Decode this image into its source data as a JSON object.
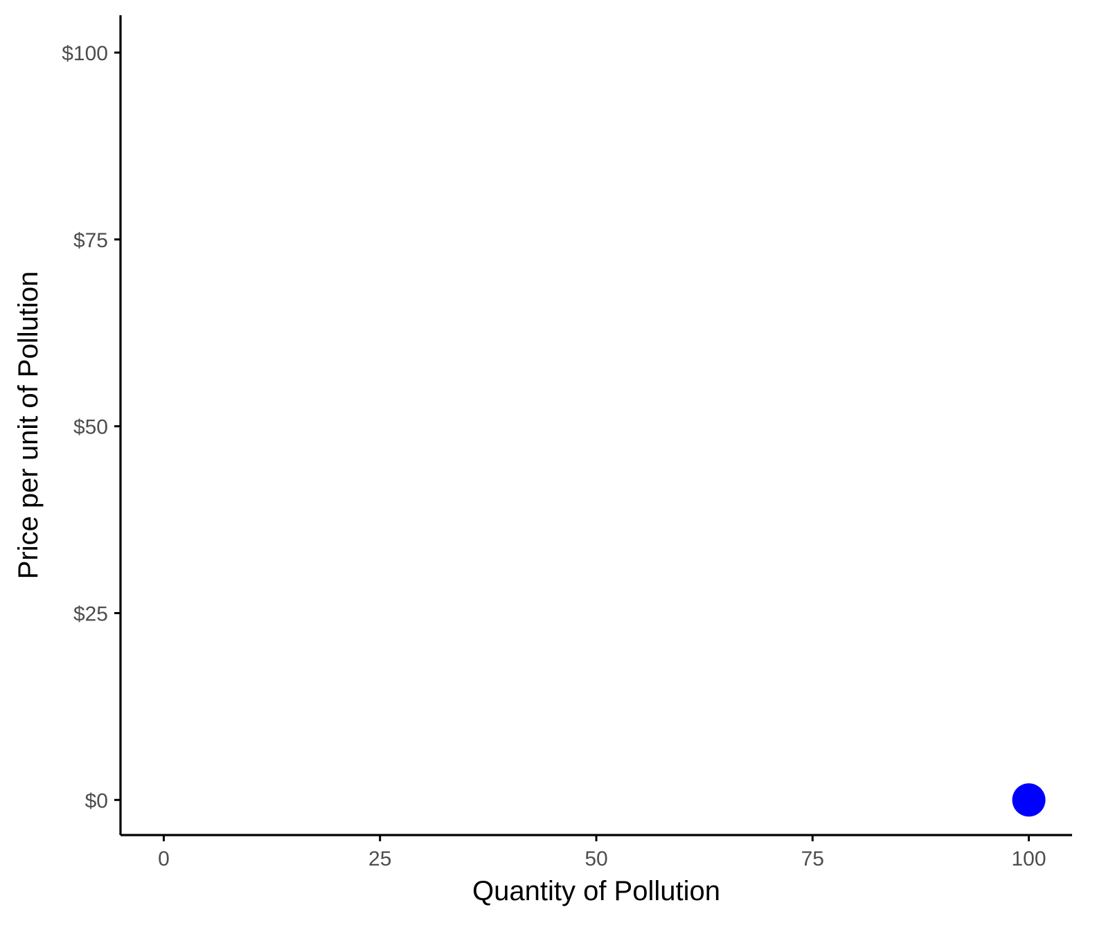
{
  "chart_data": {
    "type": "scatter",
    "xlabel": "Quantity of Pollution",
    "ylabel": "Price per unit of Pollution",
    "xlim": [
      -5,
      105
    ],
    "ylim": [
      -4.7,
      105
    ],
    "x_ticks": [
      0,
      25,
      50,
      75,
      100
    ],
    "x_tick_labels": [
      "0",
      "25",
      "50",
      "75",
      "100"
    ],
    "y_ticks": [
      0,
      25,
      50,
      75,
      100
    ],
    "y_tick_labels": [
      "$0",
      "$25",
      "$50",
      "$75",
      "$100"
    ],
    "grid": false,
    "legend": "none",
    "points": [
      {
        "x": 100,
        "y": 0
      }
    ],
    "point_color": "#0000ff",
    "axis_color": "#000000"
  }
}
